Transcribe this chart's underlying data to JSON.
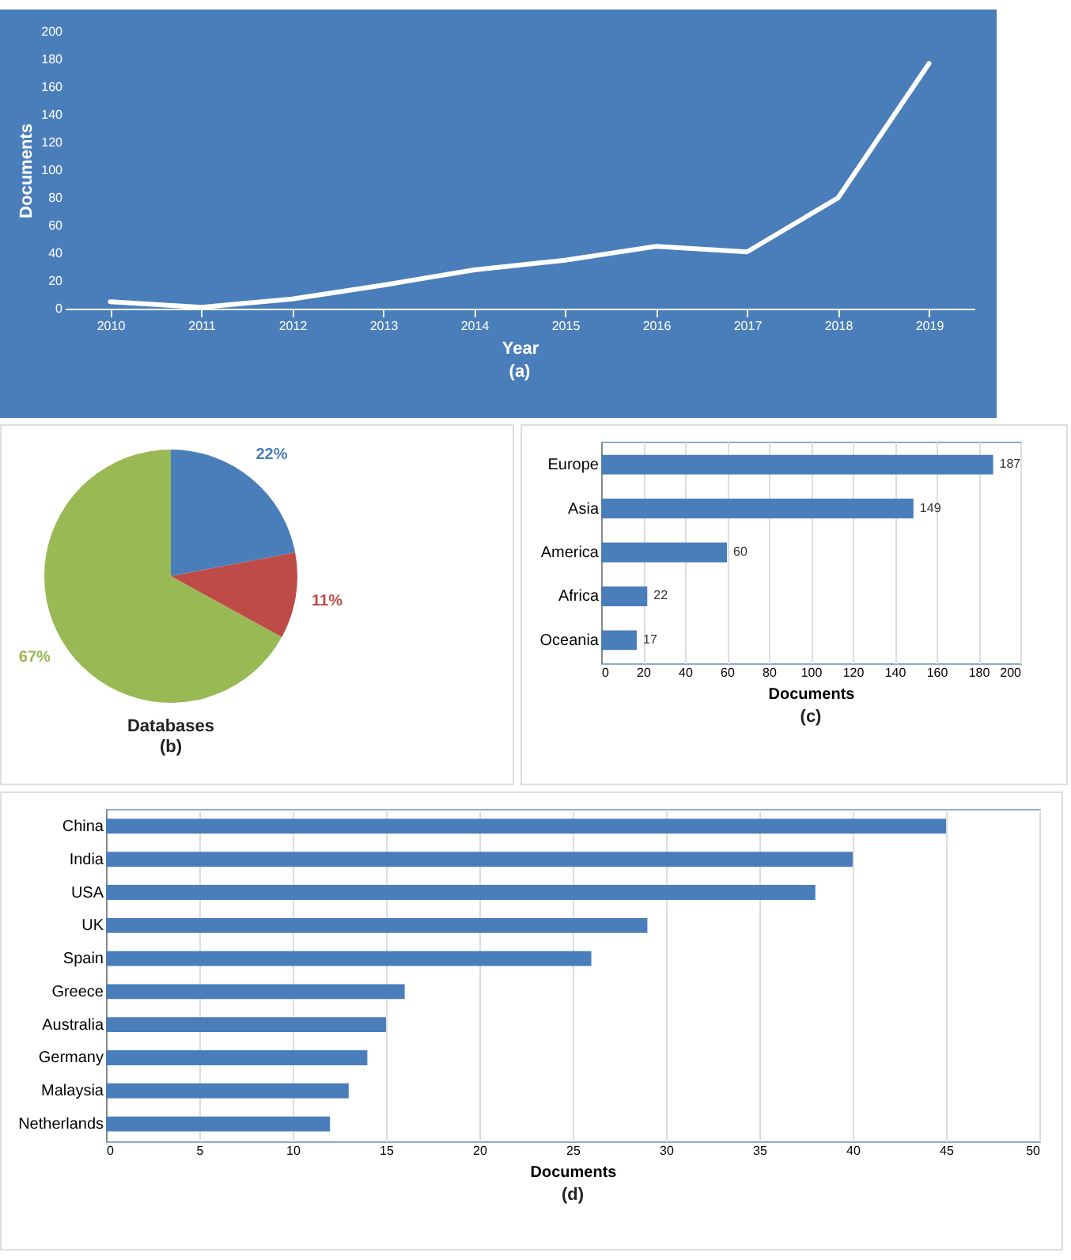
{
  "chart_data": [
    {
      "type": "line",
      "categories": [
        "2010",
        "2011",
        "2012",
        "2013",
        "2014",
        "2015",
        "2016",
        "2017",
        "2018",
        "2019"
      ],
      "values": [
        5,
        1,
        7,
        17,
        28,
        35,
        45,
        41,
        80,
        177
      ],
      "color": "#ffffff",
      "ylim": [
        0,
        200
      ],
      "yticks": [
        0,
        20,
        40,
        60,
        80,
        100,
        120,
        140,
        160,
        180,
        200
      ],
      "xlabel": "Year",
      "ylabel": "Documents",
      "annotations": [
        "(a)"
      ]
    },
    {
      "type": "pie",
      "title": "Databases",
      "categories": [
        null,
        null,
        null
      ],
      "values": [
        22,
        11,
        67
      ],
      "colors": [
        "#4a7ebb",
        "#be4b48",
        "#98b954"
      ],
      "value_labels": [
        "22%",
        "11%",
        "67%"
      ],
      "annotations": [
        "(b)"
      ]
    },
    {
      "type": "bar",
      "orientation": "horizontal",
      "categories": [
        "Europe",
        "Asia",
        "America",
        "Africa",
        "Oceania"
      ],
      "values": [
        187,
        149,
        60,
        22,
        17
      ],
      "color": "#4a7ebb",
      "xlim": [
        0,
        200
      ],
      "xticks": [
        0,
        20,
        40,
        60,
        80,
        100,
        120,
        140,
        160,
        180,
        200
      ],
      "xlabel": "Documents",
      "grid": "x",
      "data_labels": true,
      "annotations": [
        "(c)"
      ]
    },
    {
      "type": "bar",
      "orientation": "horizontal",
      "categories": [
        "China",
        "India",
        "USA",
        "UK",
        "Spain",
        "Greece",
        "Australia",
        "Germany",
        "Malaysia",
        "Netherlands"
      ],
      "values": [
        45,
        40,
        38,
        29,
        26,
        16,
        15,
        14,
        13,
        12
      ],
      "color": "#4a7ebb",
      "xlim": [
        0,
        50
      ],
      "xticks": [
        0,
        5,
        10,
        15,
        20,
        25,
        30,
        35,
        40,
        45,
        50
      ],
      "xlabel": "Documents",
      "grid": "x",
      "annotations": [
        "(d)"
      ]
    }
  ]
}
